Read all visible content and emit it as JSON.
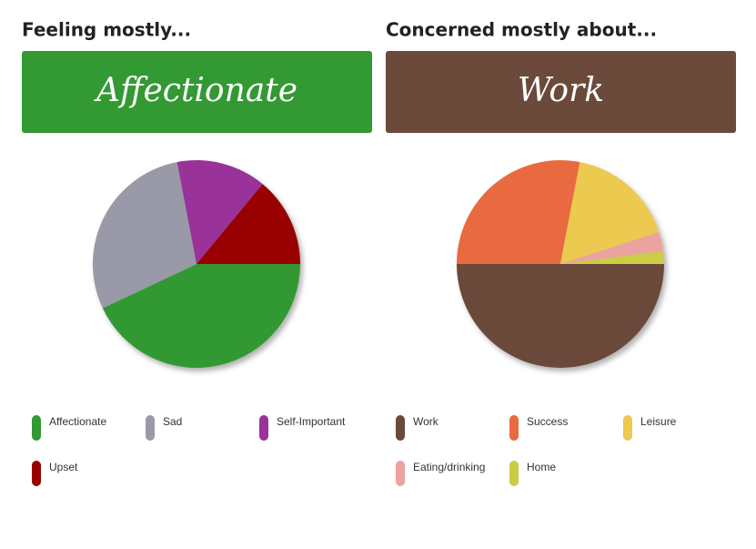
{
  "chart_data": [
    {
      "type": "pie",
      "title": "Feeling mostly...",
      "annotation": "Affectionate",
      "annotation_color": "#339933",
      "categories": [
        "Affectionate",
        "Sad",
        "Self-Important",
        "Upset"
      ],
      "values": [
        43,
        29,
        14,
        14
      ],
      "colors": [
        "#339933",
        "#9999a8",
        "#993399",
        "#990000"
      ]
    },
    {
      "type": "pie",
      "title": "Concerned mostly about...",
      "annotation": "Work",
      "annotation_color": "#6b4a3b",
      "categories": [
        "Work",
        "Success",
        "Leisure",
        "Eating/drinking",
        "Home"
      ],
      "values": [
        50,
        28,
        17,
        3,
        2
      ],
      "colors": [
        "#6b4a3b",
        "#e96a40",
        "#ecc94f",
        "#eba3a0",
        "#cccc44"
      ]
    }
  ]
}
